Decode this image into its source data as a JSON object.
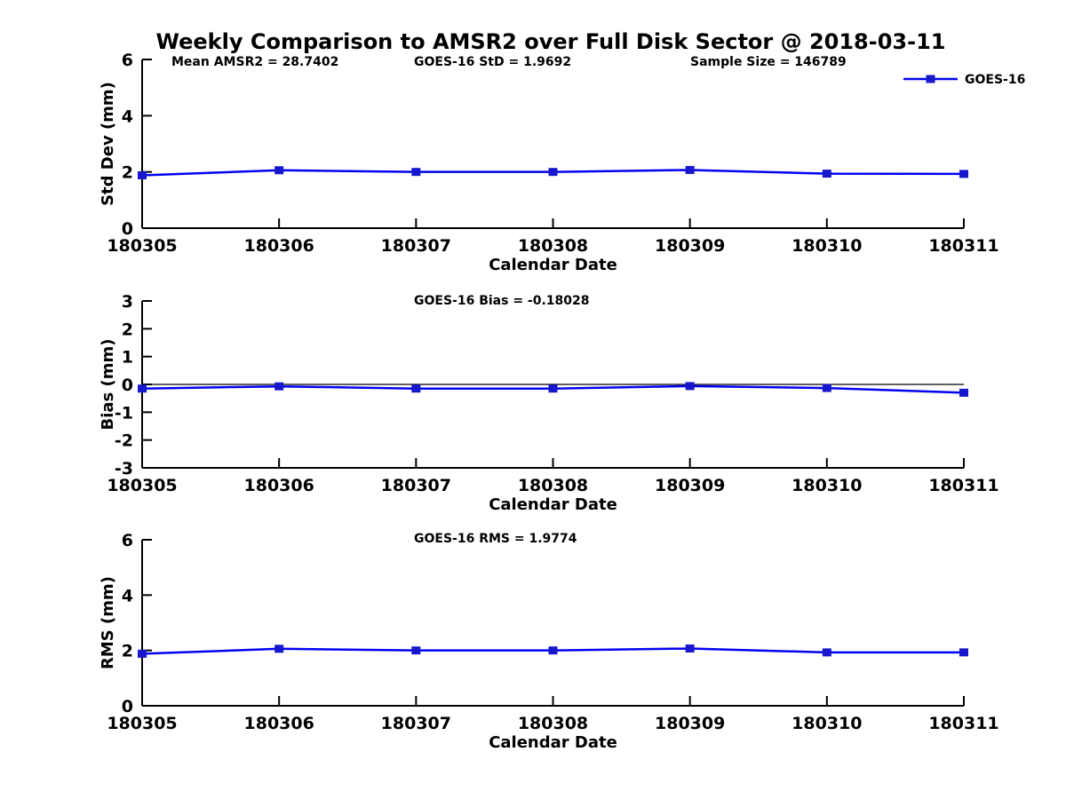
{
  "figure": {
    "title": "Weekly Comparison to AMSR2 over Full Disk Sector @ 2018-03-11"
  },
  "colors": {
    "line": "#0202F2",
    "marker": "#1717CB",
    "axis": "#000000",
    "zero_line": "#000000",
    "text": "#000000",
    "background": "#FFFFFF"
  },
  "legend": {
    "label": "GOES-16",
    "position": "top-right",
    "marker": "filled-square"
  },
  "chart_data": [
    {
      "id": "stddev",
      "type": "line",
      "title": "",
      "categories": [
        "180305",
        "180306",
        "180307",
        "180308",
        "180309",
        "180310",
        "180311"
      ],
      "series": [
        {
          "name": "GOES-16",
          "values": [
            1.88,
            2.06,
            2.0,
            2.0,
            2.07,
            1.94,
            1.93
          ]
        }
      ],
      "xlabel": "Calendar Date",
      "ylabel": "Std Dev (mm)",
      "ylim": [
        0,
        6
      ],
      "yticks": [
        0,
        2,
        4,
        6
      ],
      "grid": false,
      "zero_line": false,
      "annotations": [
        "Mean AMSR2 = 28.7402",
        "GOES-16 StD = 1.9692",
        "Sample Size = 146789"
      ],
      "legend_visible": true
    },
    {
      "id": "bias",
      "type": "line",
      "title": "",
      "categories": [
        "180305",
        "180306",
        "180307",
        "180308",
        "180309",
        "180310",
        "180311"
      ],
      "series": [
        {
          "name": "GOES-16",
          "values": [
            -0.15,
            -0.07,
            -0.15,
            -0.15,
            -0.06,
            -0.13,
            -0.3
          ]
        }
      ],
      "xlabel": "Calendar Date",
      "ylabel": "Bias (mm)",
      "ylim": [
        -3,
        3
      ],
      "yticks": [
        -3,
        -2,
        -1,
        0,
        1,
        2,
        3
      ],
      "grid": false,
      "zero_line": true,
      "annotations": [
        "GOES-16 Bias  = -0.18028"
      ],
      "legend_visible": false
    },
    {
      "id": "rms",
      "type": "line",
      "title": "",
      "categories": [
        "180305",
        "180306",
        "180307",
        "180308",
        "180309",
        "180310",
        "180311"
      ],
      "series": [
        {
          "name": "GOES-16",
          "values": [
            1.88,
            2.06,
            2.0,
            2.0,
            2.07,
            1.93,
            1.93
          ]
        }
      ],
      "xlabel": "Calendar Date",
      "ylabel": "RMS (mm)",
      "ylim": [
        0,
        6
      ],
      "yticks": [
        0,
        2,
        4,
        6
      ],
      "grid": false,
      "zero_line": false,
      "annotations": [
        "GOES-16 RMS = 1.9774"
      ],
      "legend_visible": false
    }
  ]
}
